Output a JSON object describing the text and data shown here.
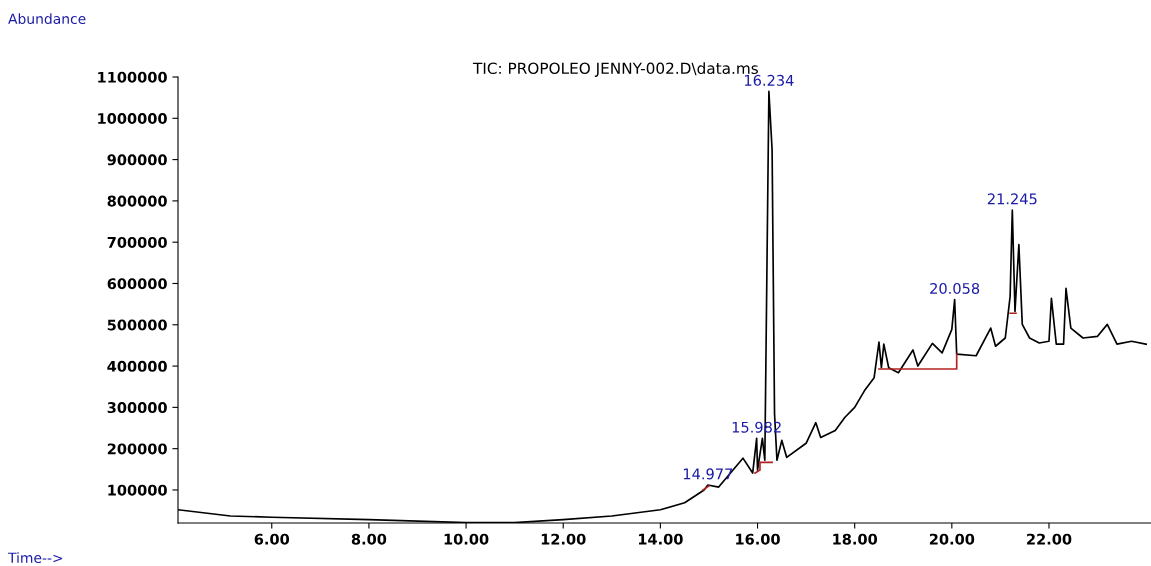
{
  "chart_data": {
    "type": "line",
    "title": "TIC: PROPOLEO JENNY-002.D\\data.ms",
    "xlabel": "Time-->",
    "ylabel": "Abundance",
    "xlim": [
      4.07,
      24.1
    ],
    "ylim": [
      20000,
      1100000
    ],
    "xticks": [
      {
        "value": 6,
        "label": "6.00"
      },
      {
        "value": 8,
        "label": "8.00"
      },
      {
        "value": 10,
        "label": "10.00"
      },
      {
        "value": 12,
        "label": "12.00"
      },
      {
        "value": 14,
        "label": "14.00"
      },
      {
        "value": 16,
        "label": "16.00"
      },
      {
        "value": 18,
        "label": "18.00"
      },
      {
        "value": 20,
        "label": "20.00"
      },
      {
        "value": 22,
        "label": "22.00"
      }
    ],
    "yticks": [
      100000,
      200000,
      300000,
      400000,
      500000,
      600000,
      700000,
      800000,
      900000,
      1000000,
      1100000
    ],
    "grid": false,
    "legend": false,
    "marker": "none",
    "line_style": "solid",
    "series": [
      {
        "color": "#000000",
        "x": [
          4.07,
          5.15,
          6.0,
          8.0,
          10.0,
          11.0,
          12.0,
          13.0,
          14.0,
          14.5,
          14.9,
          14.977,
          15.2,
          15.7,
          15.9,
          15.982,
          16.0,
          16.1,
          16.15,
          16.234,
          16.3,
          16.35,
          16.4,
          16.5,
          16.6,
          17.0,
          17.2,
          17.3,
          17.6,
          17.8,
          18.0,
          18.2,
          18.4,
          18.5,
          18.55,
          18.6,
          18.7,
          18.9,
          19.2,
          19.3,
          19.6,
          19.8,
          20.0,
          20.058,
          20.1,
          20.5,
          20.8,
          20.9,
          21.1,
          21.2,
          21.245,
          21.3,
          21.38,
          21.45,
          21.6,
          21.8,
          22.0,
          22.05,
          22.15,
          22.3,
          22.35,
          22.45,
          22.7,
          23.0,
          23.2,
          23.4,
          23.7,
          24.0
        ],
        "values": [
          52000,
          37000,
          34000,
          28000,
          21000,
          21000,
          28000,
          37000,
          52000,
          69000,
          100000,
          112000,
          107000,
          177000,
          141000,
          225000,
          148000,
          225000,
          172000,
          1065000,
          924000,
          285000,
          172000,
          220000,
          179000,
          213000,
          263000,
          227000,
          244000,
          276000,
          300000,
          340000,
          372000,
          458000,
          396000,
          453000,
          396000,
          384000,
          439000,
          400000,
          455000,
          432000,
          489000,
          561000,
          429000,
          425000,
          492000,
          448000,
          468000,
          569000,
          778000,
          532000,
          694000,
          501000,
          468000,
          456000,
          460000,
          564000,
          453000,
          453000,
          588000,
          492000,
          468000,
          472000,
          501000,
          453000,
          460000,
          453000
        ]
      },
      {
        "color": "#b22222",
        "x": [
          14.88,
          15.0,
          15.05,
          15.95,
          16.05,
          16.05,
          16.3,
          16.35,
          18.5,
          20.1,
          20.1,
          20.15,
          21.2,
          21.32
        ],
        "values": [
          100000,
          110000,
          null,
          141000,
          148000,
          167000,
          167000,
          null,
          393000,
          393000,
          429000,
          null,
          528000,
          528000
        ]
      }
    ],
    "annotations": [
      {
        "text": "14.977",
        "x": 14.977,
        "y": 112000
      },
      {
        "text": "15.982",
        "x": 15.982,
        "y": 225000
      },
      {
        "text": "16.234",
        "x": 16.234,
        "y": 1065000
      },
      {
        "text": "20.058",
        "x": 20.058,
        "y": 561000
      },
      {
        "text": "21.245",
        "x": 21.245,
        "y": 778000
      }
    ]
  }
}
